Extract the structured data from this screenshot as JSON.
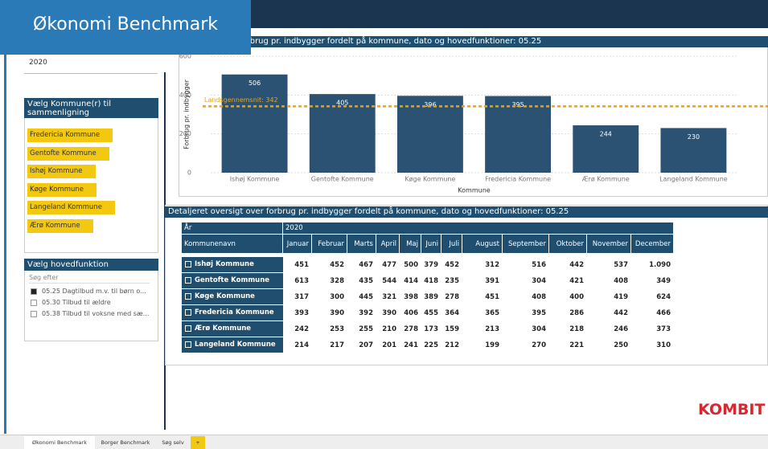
{
  "banner": {
    "title": "Økonomi Benchmark"
  },
  "year_filter": {
    "value": "2020"
  },
  "kommune_filter": {
    "title": "Vælg Kommune(r) til sammenligning",
    "items": [
      "Fredericia Kommune",
      "Gentofte Kommune",
      "Ishøj Kommune",
      "Køge Kommune",
      "Langeland Kommune",
      "Ærø Kommune"
    ]
  },
  "function_filter": {
    "title": "Vælg hovedfunktion",
    "search": "Søg efter",
    "items": [
      "05.25 Dagtilbud m.v. til børn o...",
      "05.30 Tilbud til ældre",
      "05.38 Tilbud til voksne med sæ..."
    ]
  },
  "chart_data": {
    "type": "bar",
    "title": "Oversigt over forbrug pr. indbygger fordelt på kommune, dato og hovedfunktioner: 05.25",
    "y_label": "Forbrug pr. indbygger",
    "x_label": "Kommune",
    "categories": [
      "Ishøj Kommune",
      "Gentofte Kommune",
      "Køge Kommune",
      "Fredericia Kommune",
      "Ærø Kommune",
      "Langeland Kommune"
    ],
    "values": [
      506,
      405,
      396,
      395,
      244,
      230
    ],
    "color": "#2c5273",
    "ylim": [
      0,
      600
    ],
    "yticks": [
      0,
      200,
      400,
      600
    ],
    "grid": true,
    "reference_line": {
      "value": 342,
      "label": "Landsgennemsnit: 342",
      "color": "#e8a317"
    }
  },
  "table": {
    "title": "Detaljeret oversigt over forbrug pr. indbygger fordelt på kommune, dato og hovedfunktioner: 05.25",
    "header": [
      "År",
      "2020"
    ],
    "columns": [
      "Kommunenavn",
      "Januar",
      "Februar",
      "Marts",
      "April",
      "Maj",
      "Juni",
      "Juli",
      "August",
      "September",
      "Oktober",
      "November",
      "December"
    ],
    "rows": [
      [
        "Ishøj Kommune",
        "451",
        "452",
        "467",
        "477",
        "500",
        "379",
        "452",
        "312",
        "516",
        "442",
        "537",
        "1.090"
      ],
      [
        "Gentofte Kommune",
        "613",
        "328",
        "435",
        "544",
        "414",
        "418",
        "235",
        "391",
        "304",
        "421",
        "408",
        "349"
      ],
      [
        "Køge Kommune",
        "317",
        "300",
        "445",
        "321",
        "398",
        "389",
        "278",
        "451",
        "408",
        "400",
        "419",
        "624"
      ],
      [
        "Fredericia Kommune",
        "393",
        "390",
        "392",
        "390",
        "406",
        "455",
        "364",
        "365",
        "395",
        "286",
        "442",
        "466"
      ],
      [
        "Ærø Kommune",
        "242",
        "253",
        "255",
        "210",
        "278",
        "173",
        "159",
        "213",
        "304",
        "218",
        "246",
        "373"
      ],
      [
        "Langeland Kommune",
        "214",
        "217",
        "207",
        "201",
        "241",
        "225",
        "212",
        "199",
        "270",
        "221",
        "250",
        "310"
      ]
    ]
  },
  "logo": "KOMBIT",
  "tabs": [
    "Økonomi Benchmark",
    "Borger Benchmark",
    "Søg selv",
    "+"
  ]
}
